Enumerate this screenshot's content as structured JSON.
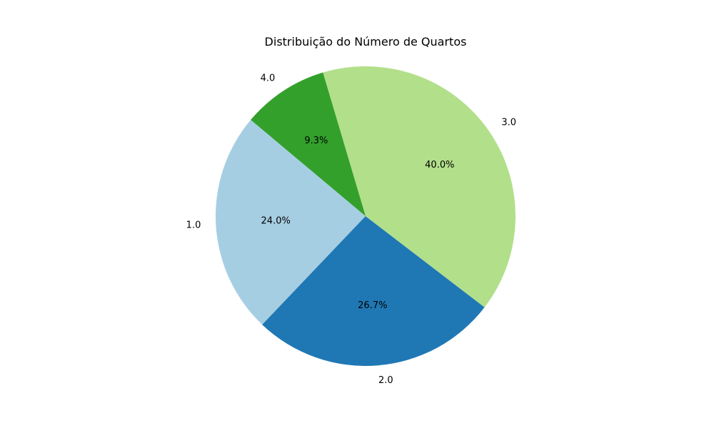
{
  "chart_data": {
    "type": "pie",
    "title": "Distribuição do Número de Quartos",
    "labels": [
      "1.0",
      "2.0",
      "3.0",
      "4.0"
    ],
    "values": [
      24.0,
      26.7,
      40.0,
      9.3
    ],
    "percent_labels": [
      "24.0%",
      "26.7%",
      "40.0%",
      "9.3%"
    ],
    "colors": [
      "#a6cee3",
      "#1f78b4",
      "#b2df8a",
      "#33a02c"
    ],
    "start_angle_deg": 140,
    "direction": "counterclockwise",
    "legend": "none"
  }
}
